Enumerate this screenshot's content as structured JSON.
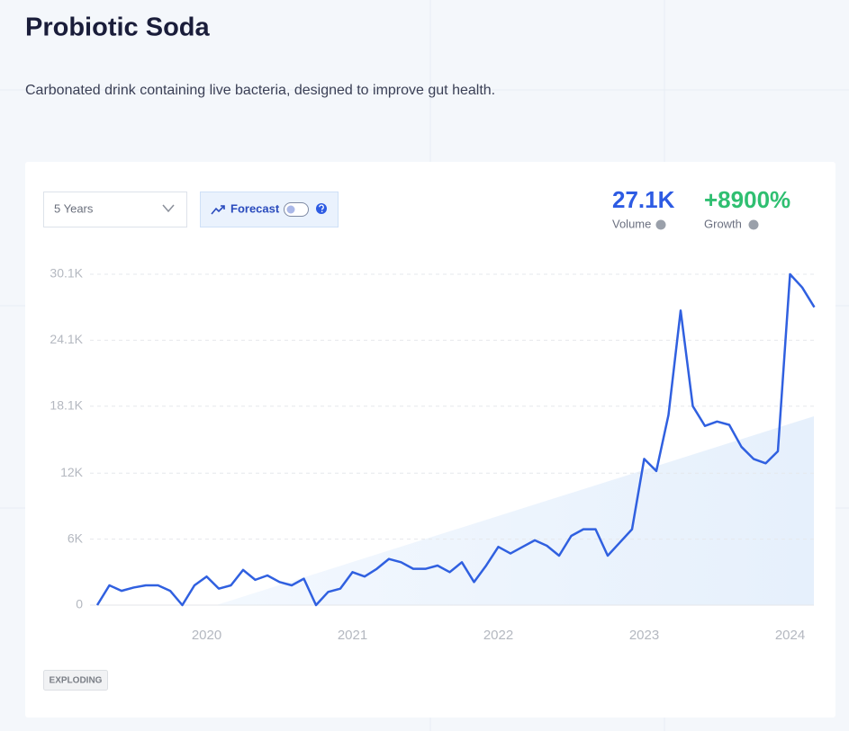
{
  "header": {
    "title": "Probiotic Soda",
    "description": "Carbonated drink containing live bacteria, designed to improve gut health."
  },
  "controls": {
    "range": "5 Years",
    "forecast": "Forecast"
  },
  "metrics": [
    {
      "value": "27.1K",
      "label": "Volume"
    },
    {
      "value": "+8900%",
      "label": "Growth"
    }
  ],
  "tag": "EXPLODING",
  "chart_data": {
    "type": "line",
    "categories": [
      null,
      null,
      null,
      null,
      null,
      null,
      null,
      null,
      null,
      "2020",
      null,
      null,
      null,
      null,
      null,
      null,
      null,
      null,
      null,
      null,
      null,
      "2021",
      null,
      null,
      null,
      null,
      null,
      null,
      null,
      null,
      null,
      null,
      null,
      "2022",
      null,
      null,
      null,
      null,
      null,
      null,
      null,
      null,
      null,
      null,
      null,
      "2023",
      null,
      null,
      null,
      null,
      null,
      null,
      null,
      null,
      null,
      null,
      null,
      "2024",
      null,
      null
    ],
    "series": [
      {
        "color": "#3060e0",
        "values": [
          0,
          1800,
          1300,
          1600,
          1800,
          1800,
          1300,
          0,
          1800,
          2600,
          1500,
          1800,
          3200,
          2300,
          2700,
          2100,
          1800,
          2400,
          0,
          1200,
          1500,
          3000,
          2600,
          3300,
          4200,
          3900,
          3300,
          3300,
          3600,
          3000,
          3900,
          2100,
          3600,
          5300,
          4700,
          5300,
          5900,
          5400,
          4500,
          6300,
          6900,
          6900,
          4500,
          5700,
          6900,
          13300,
          12200,
          17300,
          26800,
          18100,
          16300,
          16700,
          16400,
          14400,
          13300,
          12900,
          14000,
          30100,
          28900,
          27100
        ]
      }
    ],
    "ylim": [
      0,
      30100
    ],
    "yticks": [
      0,
      {
        "value": 6000,
        "label": "6K"
      },
      {
        "value": 12000,
        "label": "12K"
      },
      {
        "value": 18100,
        "label": "18.1K"
      },
      {
        "value": 24100,
        "label": "24.1K"
      },
      {
        "value": 30100,
        "label": "30.1K"
      }
    ],
    "grid": true
  }
}
